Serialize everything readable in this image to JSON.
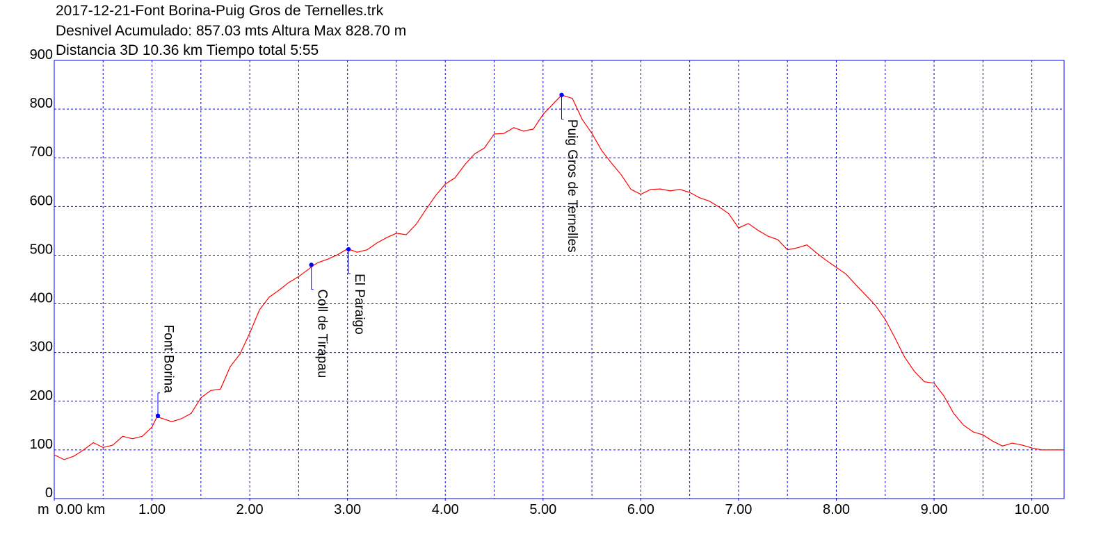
{
  "chart_data": {
    "type": "line",
    "title_lines": [
      "2017-12-21-Font Borina-Puig Gros de Ternelles.trk",
      "Desnivel Acumulado: 857.03 mts  Altura Max 828.70 m",
      "Distancia 3D 10.36 km  Tiempo total 5:55"
    ],
    "y_unit": "m",
    "x": [
      0,
      0.1,
      0.2,
      0.3,
      0.4,
      0.5,
      0.6,
      0.7,
      0.8,
      0.9,
      1.0,
      1.05,
      1.1,
      1.2,
      1.3,
      1.4,
      1.5,
      1.6,
      1.7,
      1.8,
      1.9,
      2.0,
      2.1,
      2.2,
      2.3,
      2.4,
      2.5,
      2.6,
      2.65,
      2.7,
      2.8,
      2.9,
      3.0,
      3.1,
      3.2,
      3.3,
      3.4,
      3.5,
      3.6,
      3.7,
      3.8,
      3.9,
      4.0,
      4.1,
      4.2,
      4.3,
      4.4,
      4.5,
      4.6,
      4.7,
      4.8,
      4.9,
      5.0,
      5.1,
      5.19,
      5.3,
      5.4,
      5.5,
      5.6,
      5.7,
      5.8,
      5.9,
      6.0,
      6.1,
      6.2,
      6.3,
      6.4,
      6.5,
      6.6,
      6.7,
      6.8,
      6.9,
      7.0,
      7.1,
      7.2,
      7.3,
      7.4,
      7.5,
      7.6,
      7.7,
      7.8,
      7.9,
      8.0,
      8.1,
      8.2,
      8.3,
      8.4,
      8.5,
      8.6,
      8.7,
      8.8,
      8.9,
      9.0,
      9.1,
      9.2,
      9.3,
      9.4,
      9.5,
      9.6,
      9.7,
      9.8,
      9.9,
      10.0,
      10.1,
      10.2,
      10.33
    ],
    "series": [
      {
        "color": "#ff0000",
        "values": [
          90,
          80,
          87,
          100,
          115,
          105,
          110,
          128,
          123,
          128,
          147,
          168,
          165,
          158,
          164,
          175,
          207,
          222,
          225,
          271,
          297,
          340,
          388,
          414,
          428,
          444,
          456,
          471,
          479,
          485,
          492,
          501,
          513,
          506,
          511,
          525,
          536,
          545,
          542,
          563,
          593,
          622,
          646,
          659,
          686,
          708,
          720,
          749,
          750,
          762,
          755,
          759,
          789,
          810,
          829,
          822,
          779,
          750,
          715,
          689,
          665,
          635,
          625,
          635,
          636,
          632,
          635,
          629,
          618,
          611,
          599,
          585,
          556,
          565,
          551,
          539,
          532,
          511,
          515,
          521,
          504,
          489,
          475,
          461,
          439,
          418,
          397,
          368,
          330,
          290,
          261,
          240,
          237,
          211,
          175,
          151,
          137,
          131,
          118,
          108,
          114,
          110,
          104,
          100,
          100,
          100
        ]
      }
    ],
    "waypoints": [
      {
        "name": "Font Borina",
        "x": 1.06,
        "y": 170,
        "label_position": "above"
      },
      {
        "name": "Coll de Tirapau",
        "x": 2.63,
        "y": 480,
        "label_position": "below"
      },
      {
        "name": "El Paraigo",
        "x": 3.01,
        "y": 512,
        "label_position": "below"
      },
      {
        "name": "Puig Gros de Ternelles",
        "x": 5.19,
        "y": 829,
        "label_position": "below"
      }
    ],
    "waypoint_color": "#0000ff",
    "xlim": [
      0,
      10.33
    ],
    "ylim": [
      0,
      900
    ],
    "xticks": [
      {
        "value": 0,
        "label": "0.00 km"
      },
      {
        "value": 1,
        "label": "1.00"
      },
      {
        "value": 2,
        "label": "2.00"
      },
      {
        "value": 3,
        "label": "3.00"
      },
      {
        "value": 4,
        "label": "4.00"
      },
      {
        "value": 5,
        "label": "5.00"
      },
      {
        "value": 6,
        "label": "6.00"
      },
      {
        "value": 7,
        "label": "7.00"
      },
      {
        "value": 8,
        "label": "8.00"
      },
      {
        "value": 9,
        "label": "9.00"
      },
      {
        "value": 10,
        "label": "10.00"
      }
    ],
    "xgrid": [
      0.5,
      1,
      1.5,
      2,
      2.5,
      3,
      3.5,
      4,
      4.5,
      5,
      5.5,
      6,
      6.5,
      7,
      7.5,
      8,
      8.5,
      9,
      9.5,
      10
    ],
    "yticks": [
      0,
      100,
      200,
      300,
      400,
      500,
      600,
      700,
      800,
      900
    ],
    "grid": true,
    "grid_color": "#0000ff",
    "frame_color": "#0000ff"
  }
}
